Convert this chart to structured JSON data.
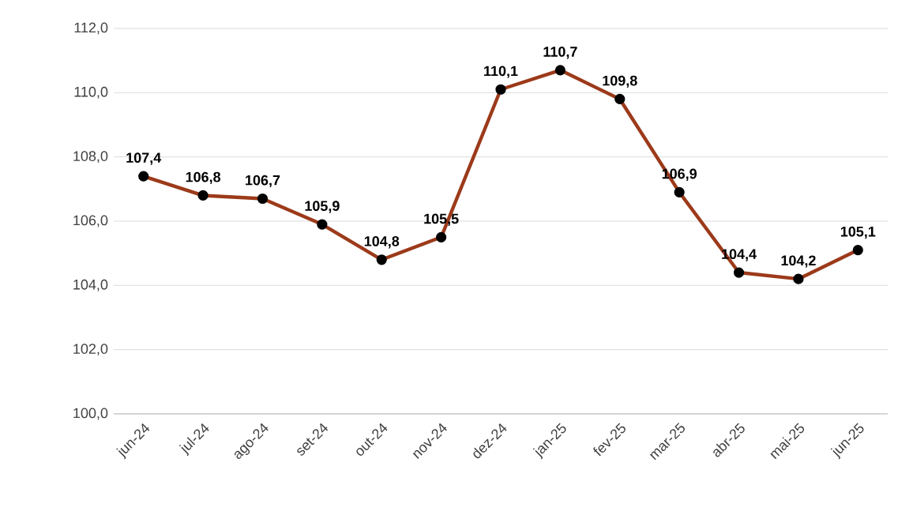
{
  "chart_data": {
    "type": "line",
    "categories": [
      "jun-24",
      "jul-24",
      "ago-24",
      "set-24",
      "out-24",
      "nov-24",
      "dez-24",
      "jan-25",
      "fev-25",
      "mar-25",
      "abr-25",
      "mai-25",
      "jun-25"
    ],
    "series": [
      {
        "color": "#9c3a1a",
        "values": [
          107.4,
          106.8,
          106.7,
          105.9,
          104.8,
          105.5,
          110.1,
          110.7,
          109.8,
          106.9,
          104.4,
          104.2,
          105.1
        ],
        "value_labels": [
          "107,4",
          "106,8",
          "106,7",
          "105,9",
          "104,8",
          "105,5",
          "110,1",
          "110,7",
          "109,8",
          "106,9",
          "104,4",
          "104,2",
          "105,1"
        ]
      }
    ],
    "ylim": [
      100,
      112
    ],
    "yticks": [
      {
        "value": 100,
        "label": "100,0"
      },
      {
        "value": 102,
        "label": "102,0"
      },
      {
        "value": 104,
        "label": "104,0"
      },
      {
        "value": 106,
        "label": "106,0"
      },
      {
        "value": 108,
        "label": "108,0"
      },
      {
        "value": 110,
        "label": "110,0"
      },
      {
        "value": 112,
        "label": "112,0"
      }
    ],
    "grid": "y",
    "marker": "circle",
    "line_style": "solid"
  }
}
